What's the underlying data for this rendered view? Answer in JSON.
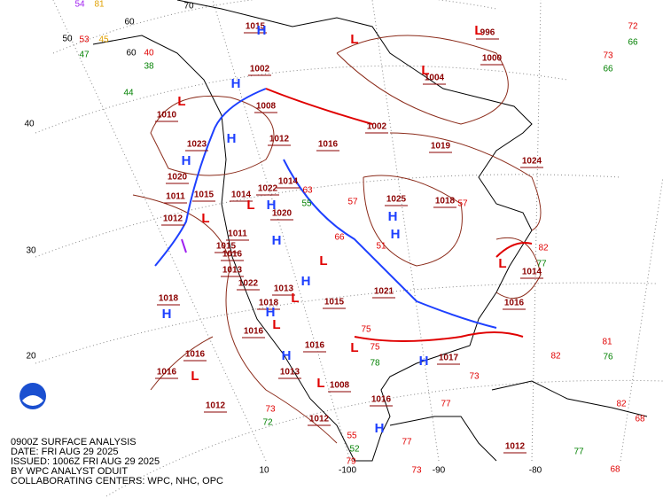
{
  "caption": [
    "0900Z SURFACE ANALYSIS",
    "DATE: FRI AUG 29 2025",
    "ISSUED: 1006Z FRI AUG 29 2025",
    "BY WPC ANALYST ODUIT",
    "COLLABORATING CENTERS: WPC, NHC, OPC"
  ],
  "grid_labels": [
    "70",
    "60",
    "50",
    "40",
    "30",
    "20",
    "10",
    "-100",
    "-90",
    "-80"
  ],
  "pressure_labels": [
    "1015",
    "1002",
    "1008",
    "1010",
    "1023",
    "1012",
    "1016",
    "1002",
    "1019",
    "1024",
    "1014",
    "1011",
    "1015",
    "1014",
    "1022",
    "1025",
    "1018",
    "1012",
    "1011",
    "1015",
    "1016",
    "1013",
    "1022",
    "1018",
    "1013",
    "1021",
    "1014",
    "1016",
    "1018",
    "1016",
    "1016",
    "1015",
    "1013",
    "1008",
    "1017",
    "1016",
    "1012",
    "1012",
    "1012",
    "1016",
    "1016",
    "996",
    "1004",
    "1000",
    "1020",
    "1020"
  ],
  "high_centers": [
    "H",
    "H",
    "H",
    "H",
    "H",
    "H",
    "H",
    "H",
    "H",
    "H",
    "H",
    "H",
    "H",
    "H"
  ],
  "low_centers": [
    "L",
    "L",
    "L",
    "L",
    "L",
    "L",
    "L",
    "L",
    "L",
    "L",
    "L",
    "L",
    "L"
  ],
  "station_values": [
    "54",
    "81",
    "60",
    "53",
    "45",
    "47",
    "40",
    "38",
    "44",
    "73",
    "66",
    "72",
    "66",
    "82",
    "77",
    "81",
    "76",
    "82",
    "68",
    "73",
    "77",
    "72",
    "55",
    "52",
    "79",
    "77",
    "73",
    "75",
    "82",
    "77",
    "68",
    "63",
    "55",
    "57",
    "51",
    "66",
    "75",
    "78",
    "73",
    "57"
  ]
}
